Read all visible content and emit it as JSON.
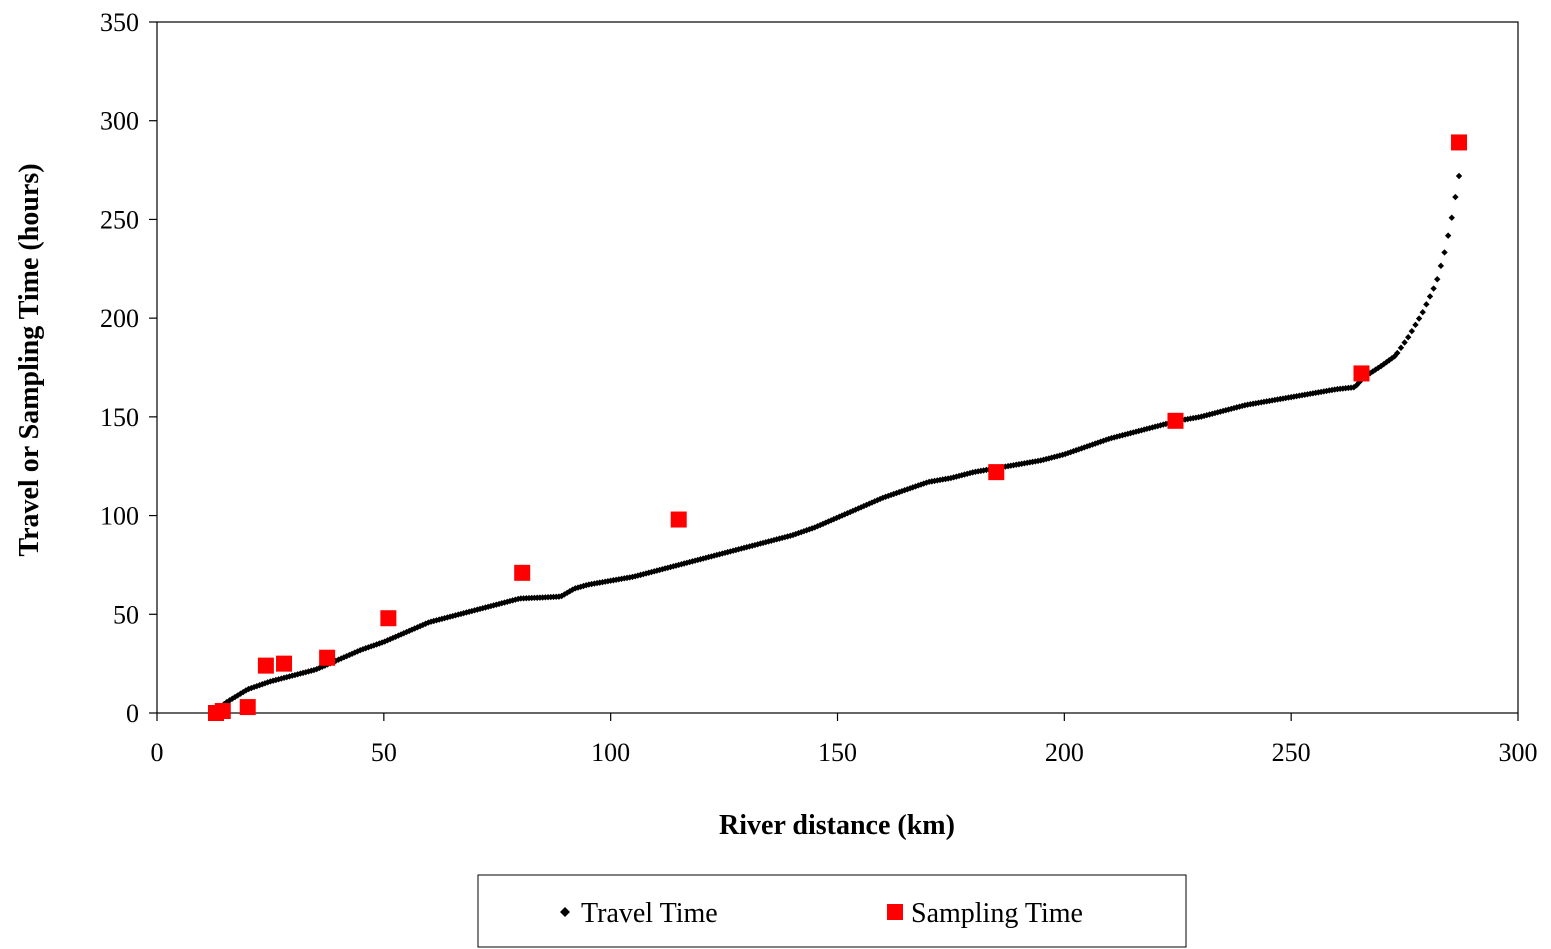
{
  "chart_data": {
    "type": "scatter",
    "xlabel": "River distance (km)",
    "ylabel": "Travel or Sampling Time (hours)",
    "xlim": [
      0,
      300
    ],
    "ylim": [
      0,
      350
    ],
    "xticks": [
      0,
      50,
      100,
      150,
      200,
      250,
      300
    ],
    "yticks": [
      0,
      50,
      100,
      150,
      200,
      250,
      300,
      350
    ],
    "grid": false,
    "legend_position": "bottom",
    "series": [
      {
        "name": "Travel Time",
        "marker": "diamond",
        "color": "#000000",
        "curve_points": [
          [
            13,
            0
          ],
          [
            15,
            5
          ],
          [
            20,
            12
          ],
          [
            25,
            16
          ],
          [
            30,
            19
          ],
          [
            35,
            22
          ],
          [
            40,
            27
          ],
          [
            45,
            32
          ],
          [
            50,
            36
          ],
          [
            55,
            41
          ],
          [
            60,
            46
          ],
          [
            65,
            49
          ],
          [
            70,
            52
          ],
          [
            75,
            55
          ],
          [
            80,
            58
          ],
          [
            85,
            58.5
          ],
          [
            89,
            59
          ],
          [
            92,
            63
          ],
          [
            95,
            65
          ],
          [
            100,
            67
          ],
          [
            105,
            69
          ],
          [
            110,
            72
          ],
          [
            115,
            75
          ],
          [
            120,
            78
          ],
          [
            125,
            81
          ],
          [
            130,
            84
          ],
          [
            135,
            87
          ],
          [
            140,
            90
          ],
          [
            145,
            94
          ],
          [
            150,
            99
          ],
          [
            155,
            104
          ],
          [
            160,
            109
          ],
          [
            165,
            113
          ],
          [
            170,
            117
          ],
          [
            175,
            119
          ],
          [
            180,
            122
          ],
          [
            185,
            124
          ],
          [
            190,
            126
          ],
          [
            195,
            128
          ],
          [
            200,
            131
          ],
          [
            205,
            135
          ],
          [
            210,
            139
          ],
          [
            215,
            142
          ],
          [
            220,
            145
          ],
          [
            225,
            148
          ],
          [
            230,
            150
          ],
          [
            235,
            153
          ],
          [
            240,
            156
          ],
          [
            245,
            158
          ],
          [
            250,
            160
          ],
          [
            255,
            162
          ],
          [
            260,
            164
          ],
          [
            264,
            165
          ],
          [
            266,
            170
          ],
          [
            270,
            176
          ],
          [
            273,
            181
          ],
          [
            276,
            191
          ],
          [
            279,
            203
          ],
          [
            282,
            218
          ],
          [
            284,
            235
          ],
          [
            285.5,
            252
          ],
          [
            287,
            272
          ]
        ]
      },
      {
        "name": "Sampling Time",
        "marker": "square",
        "color": "#ff0000",
        "points": [
          [
            13,
            0
          ],
          [
            14.5,
            1
          ],
          [
            20,
            3
          ],
          [
            24,
            24
          ],
          [
            28,
            25
          ],
          [
            37.5,
            28
          ],
          [
            51,
            48
          ],
          [
            80.5,
            71
          ],
          [
            115,
            98
          ],
          [
            185,
            122
          ],
          [
            224.5,
            148
          ],
          [
            265.5,
            172
          ],
          [
            287,
            289
          ]
        ]
      }
    ]
  }
}
